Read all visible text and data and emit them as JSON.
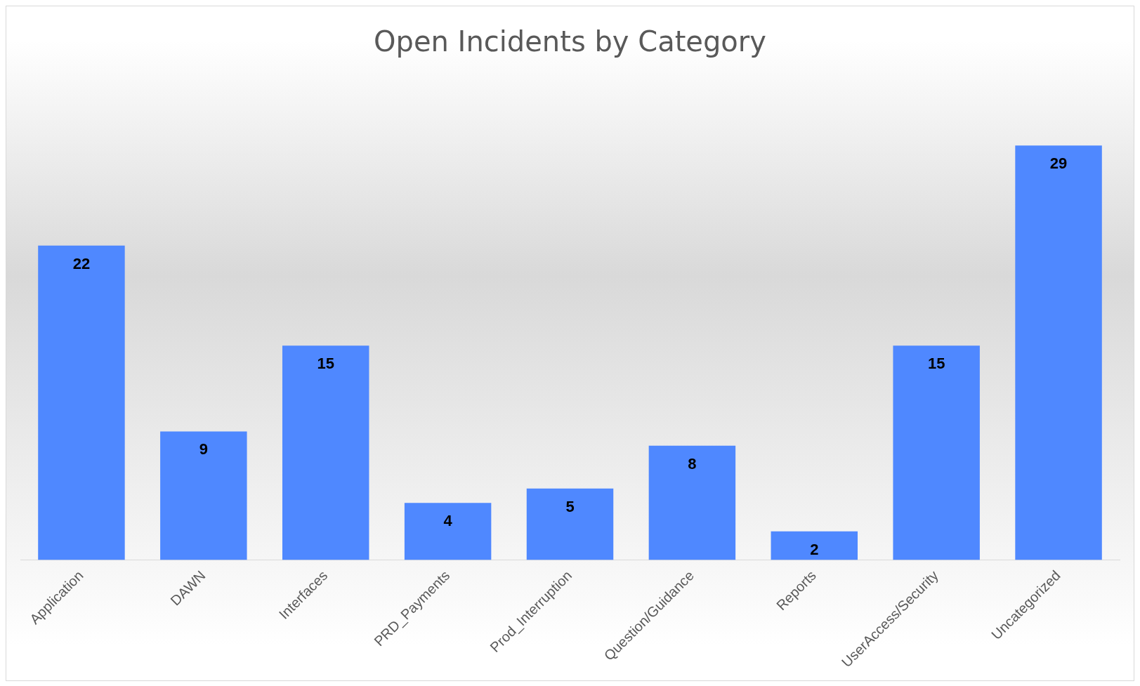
{
  "chart_data": {
    "type": "bar",
    "title": "Open Incidents by Category",
    "categories": [
      "Application",
      "DAWN",
      "Interfaces",
      "PRD_Payments",
      "Prod_Interruption",
      "Question/Guidance",
      "Reports",
      "UserAccess/Security",
      "Uncategorized"
    ],
    "values": [
      22,
      9,
      15,
      4,
      5,
      8,
      2,
      15,
      29
    ],
    "color": "#4f88ff",
    "data_labels": true,
    "grid": false,
    "legend": false
  }
}
